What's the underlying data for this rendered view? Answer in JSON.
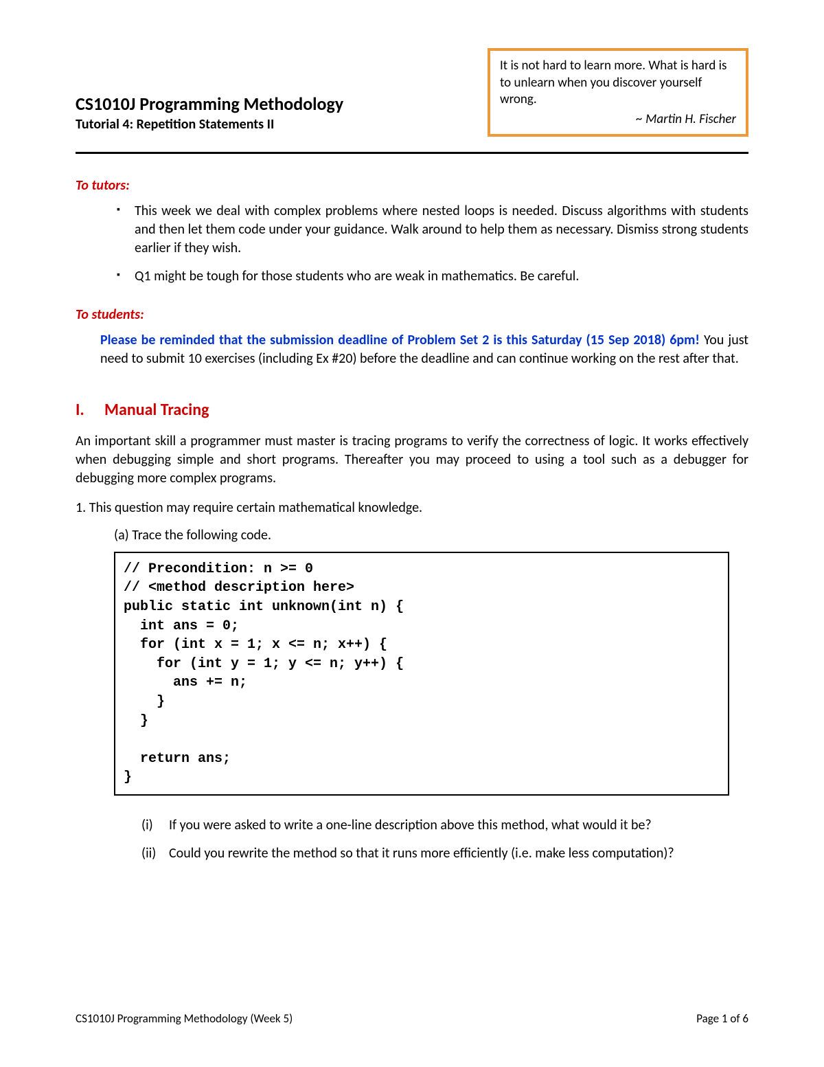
{
  "colors": {
    "quote_border": "#ed9a3d",
    "red_heading": "#cc0000",
    "blue_text": "#0033cc",
    "black": "#000000",
    "background": "#ffffff"
  },
  "typography": {
    "body_font": "Calibri",
    "code_font": "Courier New",
    "title_fontsize": 26,
    "body_fontsize": 20,
    "footer_fontsize": 17
  },
  "header": {
    "title": "CS1010J Programming Methodology",
    "subtitle": "Tutorial 4: Repetition Statements II"
  },
  "quote": {
    "text": "It is not hard to learn more. What is hard is to unlearn when you discover yourself wrong.",
    "attribution": "~ Martin H. Fischer"
  },
  "tutors": {
    "label": "To tutors:",
    "items": [
      "This week we deal with complex problems where nested loops is needed. Discuss algorithms with students and then let them code under your guidance. Walk around to help them as necessary. Dismiss strong students earlier if they wish.",
      "Q1 might be tough for those students who are weak in mathematics. Be careful."
    ]
  },
  "students": {
    "label": "To students:",
    "lead": "Please be reminded that the submission deadline of ",
    "bold": "Problem Set 2 is this Saturday (15 Sep 2018) 6pm!",
    "tail": " You just need to submit 10 exercises (including Ex #20) before the deadline and can continue working on the rest after that."
  },
  "section1": {
    "number": "I.",
    "title": "Manual Tracing",
    "intro": "An important skill a programmer must master is tracing programs to verify the correctness of logic. It works effectively when debugging simple and short programs. Thereafter you may proceed to using a tool such as a debugger for debugging more complex programs.",
    "q1": "1.  This question may require certain mathematical knowledge.",
    "q1a": "(a)  Trace the following code.",
    "code": "// Precondition: n >= 0\n// <method description here>\npublic static int unknown(int n) {\n  int ans = 0;\n  for (int x = 1; x <= n; x++) {\n    for (int y = 1; y <= n; y++) {\n      ans += n;\n    }\n  }\n\n  return ans;\n}",
    "sub_i_marker": "(i)",
    "sub_i": "If you were asked to write a one-line description above this method, what would it be?",
    "sub_ii_marker": "(ii)",
    "sub_ii": "Could you rewrite the method so that it runs more efficiently (i.e. make less computation)?"
  },
  "footer": {
    "left": "CS1010J Programming Methodology (Week 5)",
    "right": "Page 1 of 6"
  }
}
